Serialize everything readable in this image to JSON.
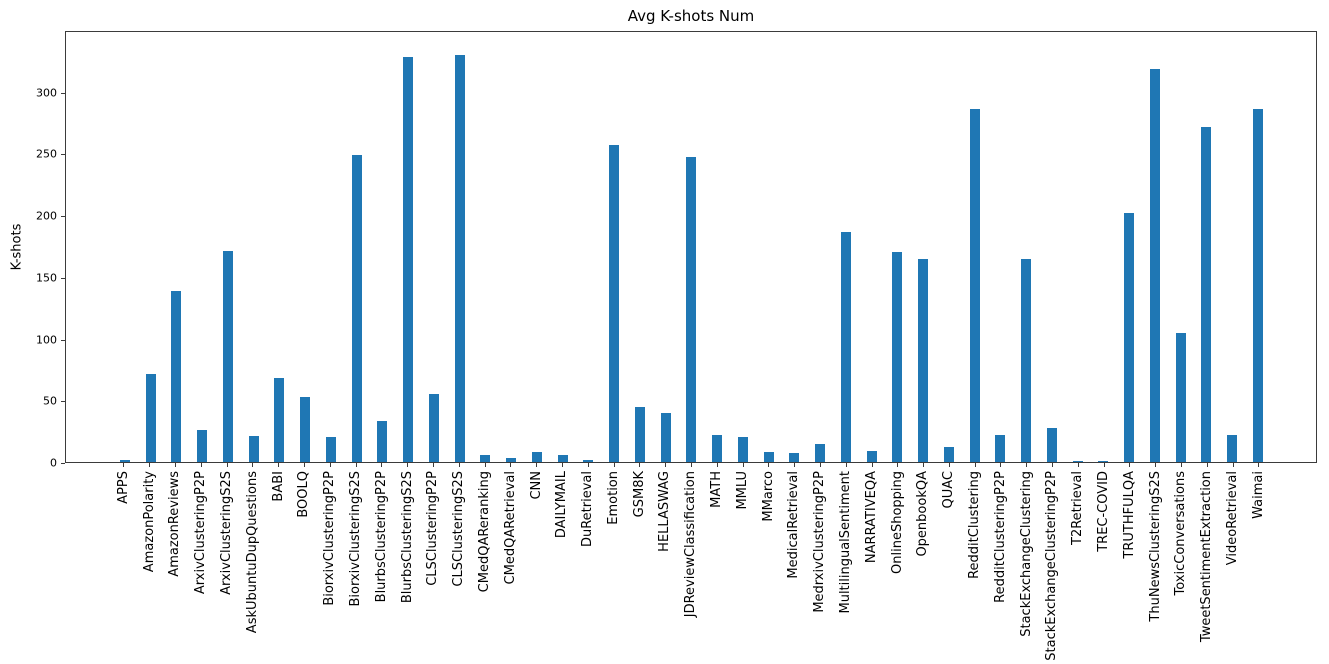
{
  "chart_data": {
    "type": "bar",
    "title": "Avg K-shots Num",
    "xlabel": "",
    "ylabel": "K-shots",
    "bar_color": "#1f77b4",
    "axis_color": "#3b3b3b",
    "ylim": [
      0,
      350
    ],
    "yticks": [
      0,
      50,
      100,
      150,
      200,
      250,
      300
    ],
    "grid": false,
    "legend": "none",
    "x_tick_rotation_deg": 90,
    "categories": [
      "APPS",
      "AmazonPolarity",
      "AmazonReviews",
      "ArxivClusteringP2P",
      "ArxivClusteringS2S",
      "AskUbuntuDupQuestions",
      "BABI",
      "BOOLQ",
      "BiorxivClusteringP2P",
      "BiorxivClusteringS2S",
      "BlurbsClusteringP2P",
      "BlurbsClusteringS2S",
      "CLSClusteringP2P",
      "CLSClusteringS2S",
      "CMedQAReranking",
      "CMedQARetrieval",
      "CNN",
      "DAILYMAIL",
      "DuRetrieval",
      "Emotion",
      "GSM8K",
      "HELLASWAG",
      "JDReviewClassification",
      "MATH",
      "MMLU",
      "MMarco",
      "MedicalRetrieval",
      "MedrxivClusteringP2P",
      "MultilingualSentiment",
      "NARRATIVEQA",
      "OnlineShopping",
      "OpenbookQA",
      "QUAC",
      "RedditClustering",
      "RedditClusteringP2P",
      "StackExchangeClustering",
      "StackExchangeClusteringP2P",
      "T2Retrieval",
      "TREC-COVID",
      "TRUTHFULQA",
      "ThuNewsClusteringS2S",
      "ToxicConversations",
      "TweetSentimentExtraction",
      "VideoRetrieval",
      "Waimai"
    ],
    "values": [
      2,
      72,
      139,
      26,
      172,
      21,
      68,
      53,
      20,
      250,
      33,
      330,
      55,
      331,
      6,
      3,
      8,
      6,
      2,
      258,
      45,
      40,
      248,
      22,
      20,
      8,
      7,
      15,
      187,
      9,
      171,
      165,
      12,
      287,
      22,
      165,
      28,
      1,
      1,
      203,
      320,
      105,
      273,
      22,
      287
    ]
  }
}
